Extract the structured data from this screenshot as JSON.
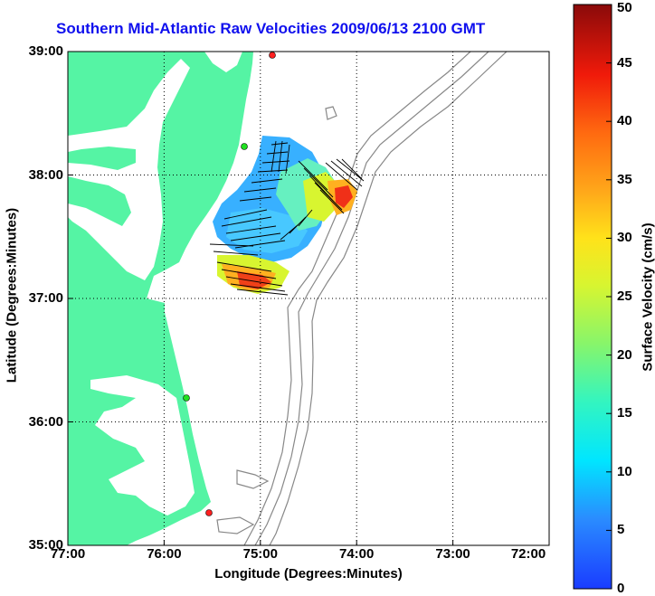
{
  "title": "Southern Mid-Atlantic Raw Velocities 2009/06/13 2100 GMT",
  "xlabel": "Longitude (Degrees:Minutes)",
  "ylabel": "Latitude (Degrees:Minutes)",
  "colorbar": {
    "label": "Surface Velocity (cm/s)",
    "min": 0,
    "max": 50,
    "ticks": [
      "0",
      "5",
      "10",
      "15",
      "20",
      "25",
      "30",
      "35",
      "40",
      "45",
      "50"
    ]
  },
  "x_ticks": [
    "77:00",
    "76:00",
    "75:00",
    "74:00",
    "73:00",
    "72:00"
  ],
  "y_ticks": [
    "39:00",
    "38:00",
    "37:00",
    "36:00",
    "35:00"
  ],
  "extent": {
    "lon_west": -77,
    "lon_east": -72,
    "lat_south": 35,
    "lat_north": 39
  },
  "colors": {
    "land": "#55f4a4",
    "title": "#1010ee",
    "grid": "#000000",
    "bathymetry": "#888888"
  }
}
